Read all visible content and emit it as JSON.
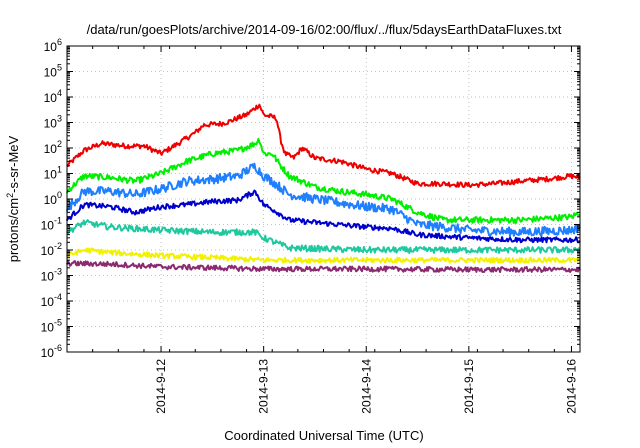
{
  "chart_data": {
    "type": "line",
    "title": "/data/run/goesPlots/archive/2014-09-16/02:00/flux/../flux/5daysEarthDataFluxes.txt",
    "xlabel": "Coordinated Universal Time (UTC)",
    "ylabel": "protons/cm2-s-sr-MeV",
    "ylabel_parts": {
      "pre": "protons/cm",
      "sup": "2",
      "post": "-s-sr-MeV"
    },
    "yscale": "log",
    "ylim": [
      "1e-6",
      "1e6"
    ],
    "y_ticks": [
      {
        "base": "10",
        "exp": "6"
      },
      {
        "base": "10",
        "exp": "5"
      },
      {
        "base": "10",
        "exp": "4"
      },
      {
        "base": "10",
        "exp": "3"
      },
      {
        "base": "10",
        "exp": "2"
      },
      {
        "base": "10",
        "exp": "1"
      },
      {
        "base": "10",
        "exp": "0"
      },
      {
        "base": "10",
        "exp": "-1"
      },
      {
        "base": "10",
        "exp": "-2"
      },
      {
        "base": "10",
        "exp": "-3"
      },
      {
        "base": "10",
        "exp": "-4"
      },
      {
        "base": "10",
        "exp": "-5"
      },
      {
        "base": "10",
        "exp": "-6"
      }
    ],
    "xlim": [
      "2014-09-11 02:00",
      "2014-09-16 02:00"
    ],
    "x_ticks": [
      "2014-9-12",
      "2014-9-13",
      "2014-9-14",
      "2014-9-15",
      "2014-9-16"
    ],
    "x_tick_dates": [
      "2014-09-12",
      "2014-09-13",
      "2014-09-14",
      "2014-09-15",
      "2014-09-16"
    ],
    "grid": true,
    "series": [
      {
        "color": "#ee0000",
        "noise": 0.1,
        "points": [
          [
            "2014-09-11 02:00",
            20
          ],
          [
            "2014-09-11 06:00",
            80
          ],
          [
            "2014-09-11 10:00",
            150
          ],
          [
            "2014-09-11 16:00",
            120
          ],
          [
            "2014-09-11 20:00",
            120
          ],
          [
            "2014-09-12 00:00",
            60
          ],
          [
            "2014-09-12 04:00",
            150
          ],
          [
            "2014-09-12 08:00",
            400
          ],
          [
            "2014-09-12 10:00",
            800
          ],
          [
            "2014-09-12 14:00",
            900
          ],
          [
            "2014-09-12 16:00",
            1100
          ],
          [
            "2014-09-12 18:00",
            1500
          ],
          [
            "2014-09-12 20:00",
            2000
          ],
          [
            "2014-09-12 23:00",
            5000
          ],
          [
            "2014-09-13 00:00",
            2000
          ],
          [
            "2014-09-13 03:00",
            1500
          ],
          [
            "2014-09-13 04:00",
            200
          ],
          [
            "2014-09-13 05:00",
            60
          ],
          [
            "2014-09-13 07:00",
            40
          ],
          [
            "2014-09-13 09:00",
            100
          ],
          [
            "2014-09-13 12:00",
            40
          ],
          [
            "2014-09-13 18:00",
            30
          ],
          [
            "2014-09-14 00:00",
            15
          ],
          [
            "2014-09-14 06:00",
            10
          ],
          [
            "2014-09-14 12:00",
            4
          ],
          [
            "2014-09-14 18:00",
            4
          ],
          [
            "2014-09-15 00:00",
            3.5
          ],
          [
            "2014-09-15 06:00",
            4
          ],
          [
            "2014-09-15 12:00",
            5
          ],
          [
            "2014-09-15 18:00",
            6
          ],
          [
            "2014-09-16 00:00",
            8
          ],
          [
            "2014-09-16 02:00",
            7
          ]
        ]
      },
      {
        "color": "#00ee00",
        "noise": 0.12,
        "points": [
          [
            "2014-09-11 02:00",
            2
          ],
          [
            "2014-09-11 06:00",
            8
          ],
          [
            "2014-09-11 12:00",
            7
          ],
          [
            "2014-09-11 18:00",
            5
          ],
          [
            "2014-09-12 00:00",
            10
          ],
          [
            "2014-09-12 06:00",
            30
          ],
          [
            "2014-09-12 12:00",
            60
          ],
          [
            "2014-09-12 18:00",
            80
          ],
          [
            "2014-09-12 22:00",
            150
          ],
          [
            "2014-09-12 23:00",
            220
          ],
          [
            "2014-09-13 00:00",
            60
          ],
          [
            "2014-09-13 02:00",
            60
          ],
          [
            "2014-09-13 04:00",
            20
          ],
          [
            "2014-09-13 06:00",
            8
          ],
          [
            "2014-09-13 12:00",
            3
          ],
          [
            "2014-09-13 18:00",
            2
          ],
          [
            "2014-09-14 00:00",
            1.5
          ],
          [
            "2014-09-14 06:00",
            1
          ],
          [
            "2014-09-14 12:00",
            0.3
          ],
          [
            "2014-09-14 18:00",
            0.15
          ],
          [
            "2014-09-15 00:00",
            0.15
          ],
          [
            "2014-09-15 12:00",
            0.15
          ],
          [
            "2014-09-16 00:00",
            0.2
          ],
          [
            "2014-09-16 02:00",
            0.3
          ]
        ]
      },
      {
        "color": "#1f7fff",
        "noise": 0.18,
        "points": [
          [
            "2014-09-11 02:00",
            0.4
          ],
          [
            "2014-09-11 06:00",
            2
          ],
          [
            "2014-09-11 12:00",
            2
          ],
          [
            "2014-09-11 18:00",
            1.5
          ],
          [
            "2014-09-12 00:00",
            2.5
          ],
          [
            "2014-09-12 06:00",
            5
          ],
          [
            "2014-09-12 12:00",
            6
          ],
          [
            "2014-09-12 18:00",
            8
          ],
          [
            "2014-09-12 22:00",
            20
          ],
          [
            "2014-09-13 00:00",
            8
          ],
          [
            "2014-09-13 02:00",
            5
          ],
          [
            "2014-09-13 06:00",
            1.5
          ],
          [
            "2014-09-13 12:00",
            1
          ],
          [
            "2014-09-14 00:00",
            0.5
          ],
          [
            "2014-09-14 06:00",
            0.4
          ],
          [
            "2014-09-14 12:00",
            0.1
          ],
          [
            "2014-09-14 18:00",
            0.08
          ],
          [
            "2014-09-15 00:00",
            0.06
          ],
          [
            "2014-09-15 12:00",
            0.05
          ],
          [
            "2014-09-16 00:00",
            0.06
          ],
          [
            "2014-09-16 02:00",
            0.08
          ]
        ]
      },
      {
        "color": "#0000cc",
        "noise": 0.1,
        "points": [
          [
            "2014-09-11 02:00",
            0.15
          ],
          [
            "2014-09-11 06:00",
            0.6
          ],
          [
            "2014-09-11 12:00",
            0.5
          ],
          [
            "2014-09-11 18:00",
            0.3
          ],
          [
            "2014-09-12 00:00",
            0.5
          ],
          [
            "2014-09-12 06:00",
            0.6
          ],
          [
            "2014-09-12 12:00",
            0.8
          ],
          [
            "2014-09-12 18:00",
            0.9
          ],
          [
            "2014-09-12 22:00",
            2
          ],
          [
            "2014-09-13 00:00",
            0.6
          ],
          [
            "2014-09-13 02:00",
            0.4
          ],
          [
            "2014-09-13 06:00",
            0.15
          ],
          [
            "2014-09-13 12:00",
            0.12
          ],
          [
            "2014-09-14 00:00",
            0.08
          ],
          [
            "2014-09-14 06:00",
            0.07
          ],
          [
            "2014-09-14 12:00",
            0.04
          ],
          [
            "2014-09-15 00:00",
            0.03
          ],
          [
            "2014-09-15 12:00",
            0.025
          ],
          [
            "2014-09-16 00:00",
            0.025
          ],
          [
            "2014-09-16 02:00",
            0.025
          ]
        ]
      },
      {
        "color": "#20c8a0",
        "noise": 0.12,
        "points": [
          [
            "2014-09-11 02:00",
            0.05
          ],
          [
            "2014-09-11 06:00",
            0.12
          ],
          [
            "2014-09-11 12:00",
            0.08
          ],
          [
            "2014-09-12 00:00",
            0.06
          ],
          [
            "2014-09-12 12:00",
            0.05
          ],
          [
            "2014-09-12 22:00",
            0.05
          ],
          [
            "2014-09-13 00:00",
            0.03
          ],
          [
            "2014-09-13 06:00",
            0.012
          ],
          [
            "2014-09-14 00:00",
            0.01
          ],
          [
            "2014-09-14 12:00",
            0.01
          ],
          [
            "2014-09-15 00:00",
            0.01
          ],
          [
            "2014-09-16 00:00",
            0.01
          ],
          [
            "2014-09-16 02:00",
            0.012
          ]
        ]
      },
      {
        "color": "#f2f200",
        "noise": 0.1,
        "points": [
          [
            "2014-09-11 02:00",
            0.006
          ],
          [
            "2014-09-11 06:00",
            0.01
          ],
          [
            "2014-09-11 12:00",
            0.008
          ],
          [
            "2014-09-12 00:00",
            0.006
          ],
          [
            "2014-09-12 12:00",
            0.005
          ],
          [
            "2014-09-13 00:00",
            0.004
          ],
          [
            "2014-09-13 12:00",
            0.004
          ],
          [
            "2014-09-14 00:00",
            0.004
          ],
          [
            "2014-09-15 00:00",
            0.004
          ],
          [
            "2014-09-16 02:00",
            0.004
          ]
        ]
      },
      {
        "color": "#8b2a6e",
        "noise": 0.1,
        "points": [
          [
            "2014-09-11 02:00",
            0.003
          ],
          [
            "2014-09-11 12:00",
            0.0028
          ],
          [
            "2014-09-12 00:00",
            0.0022
          ],
          [
            "2014-09-12 12:00",
            0.002
          ],
          [
            "2014-09-13 00:00",
            0.0018
          ],
          [
            "2014-09-14 00:00",
            0.0018
          ],
          [
            "2014-09-15 00:00",
            0.0017
          ],
          [
            "2014-09-16 02:00",
            0.0017
          ]
        ]
      }
    ]
  }
}
